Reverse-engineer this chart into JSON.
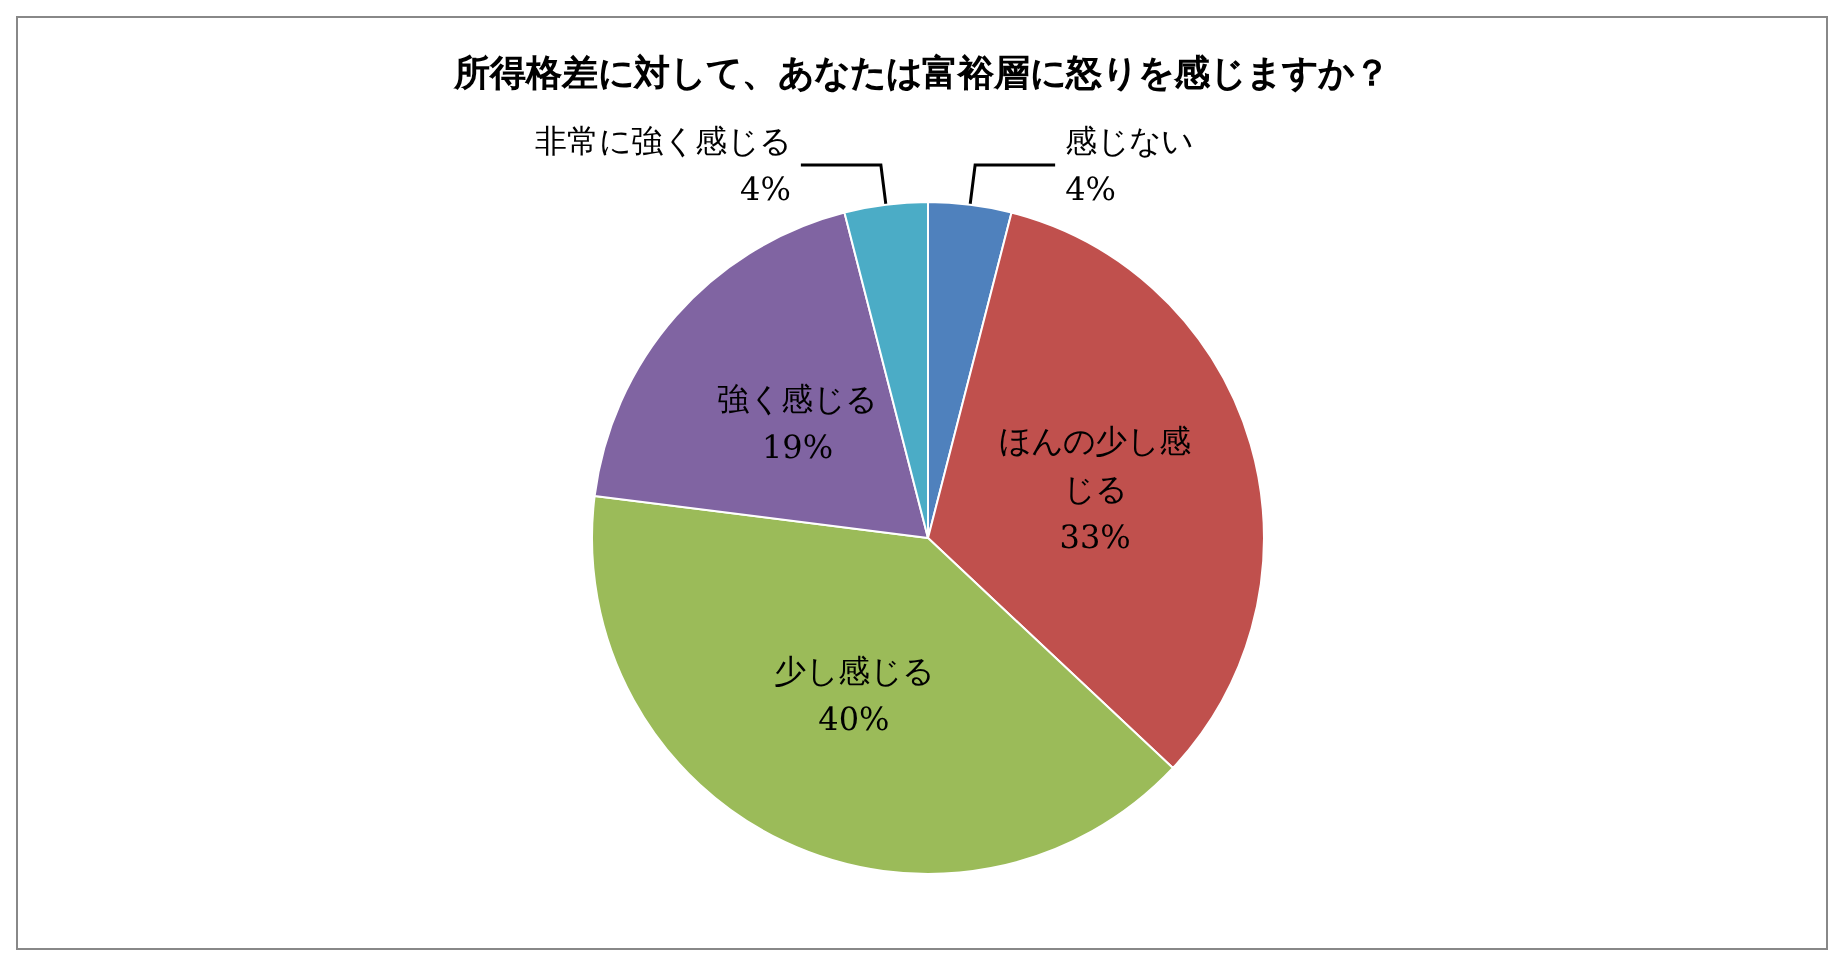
{
  "chart_data": {
    "type": "pie",
    "title": "所得格差に対して、あなたは富裕層に怒りを感じますか？",
    "categories": [
      "感じない",
      "ほんの少し感じる",
      "少し感じる",
      "強く感じる",
      "非常に強く感じる"
    ],
    "values": [
      4,
      33,
      40,
      19,
      4
    ],
    "colors": [
      "#4f81bd",
      "#c0504d",
      "#9bbb59",
      "#8064a2",
      "#4bacc6"
    ],
    "value_labels": [
      "4%",
      "33%",
      "40%",
      "19%",
      "4%"
    ],
    "legend": false
  }
}
